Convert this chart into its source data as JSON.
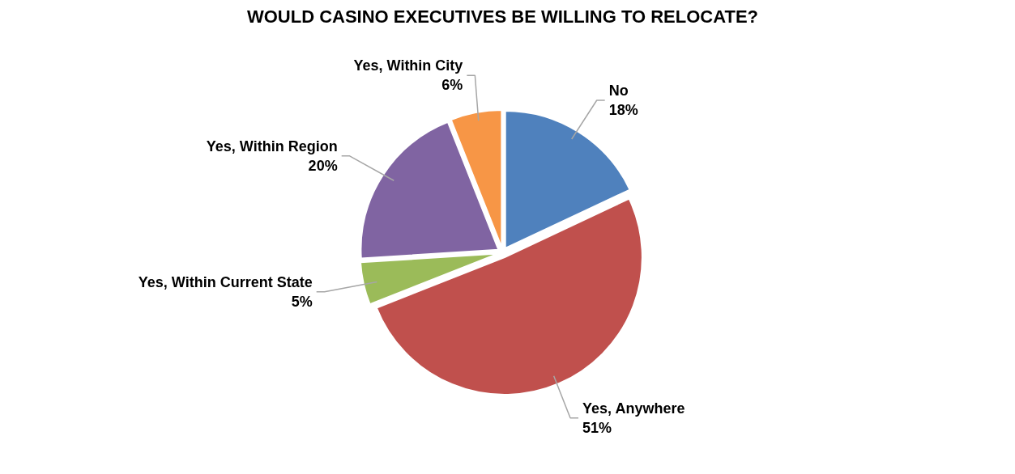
{
  "chart_data": {
    "type": "pie",
    "title": "WOULD CASINO EXECUTIVES BE WILLING TO RELOCATE?",
    "categories": [
      "No",
      "Yes, Anywhere",
      "Yes, Within Current State",
      "Yes, Within Region",
      "Yes, Within City"
    ],
    "values": [
      18,
      51,
      5,
      20,
      6
    ],
    "colors": [
      "#4f81bd",
      "#c0504d",
      "#9bbb59",
      "#8064a2",
      "#f79646"
    ],
    "value_labels": [
      "18%",
      "51%",
      "5%",
      "20%",
      "6%"
    ]
  }
}
